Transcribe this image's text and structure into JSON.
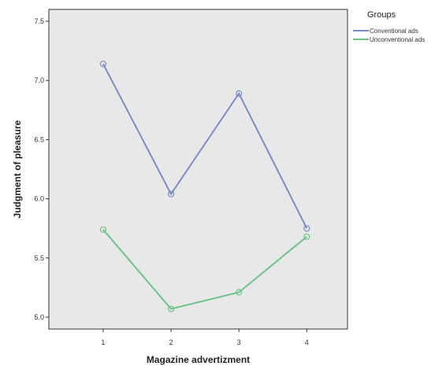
{
  "chart_data": {
    "type": "line",
    "title": "",
    "xlabel": "Magazine advertizment",
    "ylabel": "Judgment of pleasure",
    "x": [
      1,
      2,
      3,
      4
    ],
    "x_tick_labels": [
      "1",
      "2",
      "3",
      "4"
    ],
    "ylim": [
      4.9,
      7.6
    ],
    "y_ticks": [
      5.0,
      5.5,
      6.0,
      6.5,
      7.0,
      7.5
    ],
    "y_tick_labels": [
      "5.0",
      "5.5",
      "6.0",
      "6.5",
      "7.0",
      "7.5"
    ],
    "grid": false,
    "legend": {
      "title": "Groups",
      "placement": "right"
    },
    "series": [
      {
        "name": "Conventional ads",
        "color": "#7b8dc8",
        "values": [
          7.14,
          6.04,
          6.89,
          5.75
        ]
      },
      {
        "name": "Unconventional ads",
        "color": "#6cc489",
        "values": [
          5.74,
          5.07,
          5.21,
          5.68
        ]
      }
    ],
    "plot_background": "#e8e8e8"
  }
}
